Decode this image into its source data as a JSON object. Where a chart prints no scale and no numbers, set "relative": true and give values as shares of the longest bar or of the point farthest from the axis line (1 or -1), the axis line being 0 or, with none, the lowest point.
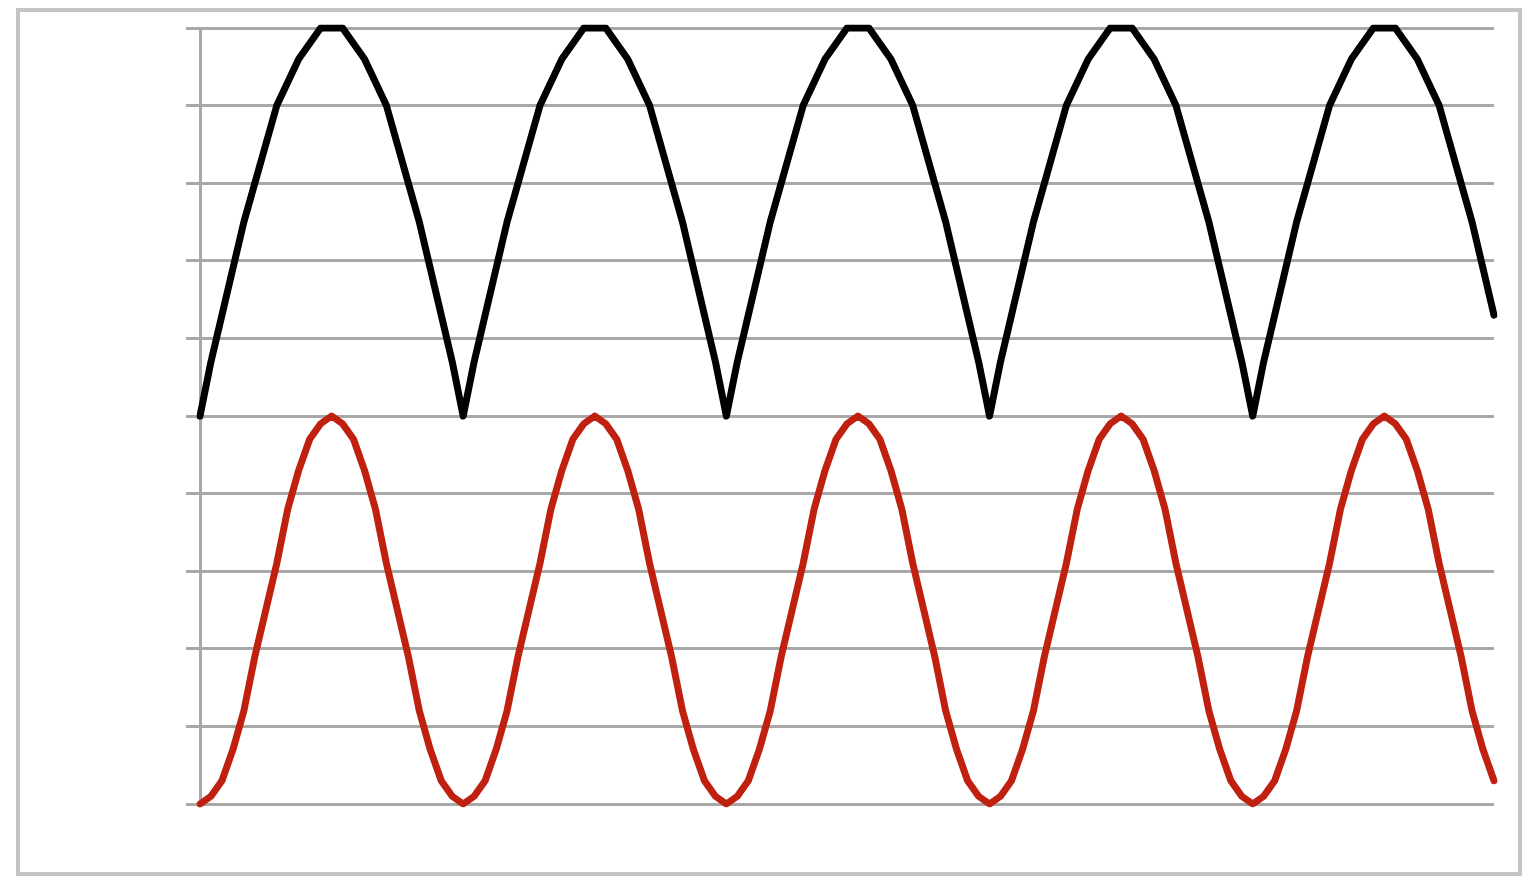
{
  "chart_data": {
    "type": "line",
    "relative": true,
    "grid": "y",
    "categories": [
      null,
      null,
      null,
      null,
      null,
      null,
      null,
      null,
      null,
      null,
      null,
      null,
      null,
      null,
      null,
      null,
      null,
      null,
      null,
      null,
      null,
      null,
      null,
      null,
      null,
      null,
      null,
      null,
      null,
      null,
      null,
      null,
      null,
      null,
      null,
      null,
      null,
      null,
      null,
      null,
      null,
      null,
      null,
      null,
      null,
      null,
      null,
      null,
      null,
      null,
      null,
      null,
      null,
      null,
      null,
      null,
      null,
      null,
      null,
      null,
      null,
      null,
      null,
      null,
      null,
      null,
      null,
      null,
      null,
      null,
      null,
      null,
      null,
      null,
      null,
      null,
      null,
      null,
      null,
      null,
      null,
      null,
      null,
      null,
      null,
      null,
      null,
      null,
      null,
      null,
      null,
      null,
      null,
      null,
      null,
      null,
      null,
      null,
      null,
      null,
      null,
      null,
      null,
      null,
      null,
      null,
      null,
      null,
      null,
      null,
      null,
      null,
      null,
      null,
      null,
      null,
      null,
      null,
      null
    ],
    "series": [
      {
        "color": "#000000",
        "values": [
          0.5,
          0.57,
          0.63,
          0.69,
          0.75,
          0.8,
          0.85,
          0.9,
          0.93,
          0.96,
          0.98,
          1,
          1,
          1,
          0.98,
          0.96,
          0.93,
          0.9,
          0.85,
          0.8,
          0.75,
          0.69,
          0.63,
          0.57,
          0.5,
          0.57,
          0.63,
          0.69,
          0.75,
          0.8,
          0.85,
          0.9,
          0.93,
          0.96,
          0.98,
          1,
          1,
          1,
          0.98,
          0.96,
          0.93,
          0.9,
          0.85,
          0.8,
          0.75,
          0.69,
          0.63,
          0.57,
          0.5,
          0.57,
          0.63,
          0.69,
          0.75,
          0.8,
          0.85,
          0.9,
          0.93,
          0.96,
          0.98,
          1,
          1,
          1,
          0.98,
          0.96,
          0.93,
          0.9,
          0.85,
          0.8,
          0.75,
          0.69,
          0.63,
          0.57,
          0.5,
          0.57,
          0.63,
          0.69,
          0.75,
          0.8,
          0.85,
          0.9,
          0.93,
          0.96,
          0.98,
          1,
          1,
          1,
          0.98,
          0.96,
          0.93,
          0.9,
          0.85,
          0.8,
          0.75,
          0.69,
          0.63,
          0.57,
          0.5,
          0.57,
          0.63,
          0.69,
          0.75,
          0.8,
          0.85,
          0.9,
          0.93,
          0.96,
          0.98,
          1,
          1,
          1,
          0.98,
          0.96,
          0.93,
          0.9,
          0.85,
          0.8,
          0.75,
          0.69,
          0.63
        ]
      },
      {
        "color": "#c0200f",
        "values": [
          0,
          0.01,
          0.03,
          0.07,
          0.12,
          0.19,
          0.25,
          0.31,
          0.38,
          0.43,
          0.47,
          0.49,
          0.5,
          0.49,
          0.47,
          0.43,
          0.38,
          0.31,
          0.25,
          0.19,
          0.12,
          0.07,
          0.03,
          0.01,
          0,
          0.01,
          0.03,
          0.07,
          0.12,
          0.19,
          0.25,
          0.31,
          0.38,
          0.43,
          0.47,
          0.49,
          0.5,
          0.49,
          0.47,
          0.43,
          0.38,
          0.31,
          0.25,
          0.19,
          0.12,
          0.07,
          0.03,
          0.01,
          0,
          0.01,
          0.03,
          0.07,
          0.12,
          0.19,
          0.25,
          0.31,
          0.38,
          0.43,
          0.47,
          0.49,
          0.5,
          0.49,
          0.47,
          0.43,
          0.38,
          0.31,
          0.25,
          0.19,
          0.12,
          0.07,
          0.03,
          0.01,
          0,
          0.01,
          0.03,
          0.07,
          0.12,
          0.19,
          0.25,
          0.31,
          0.38,
          0.43,
          0.47,
          0.49,
          0.5,
          0.49,
          0.47,
          0.43,
          0.38,
          0.31,
          0.25,
          0.19,
          0.12,
          0.07,
          0.03,
          0.01,
          0,
          0.01,
          0.03,
          0.07,
          0.12,
          0.19,
          0.25,
          0.31,
          0.38,
          0.43,
          0.47,
          0.49,
          0.5,
          0.49,
          0.47,
          0.43,
          0.38,
          0.31,
          0.25,
          0.19,
          0.12,
          0.07,
          0.03
        ]
      }
    ]
  }
}
